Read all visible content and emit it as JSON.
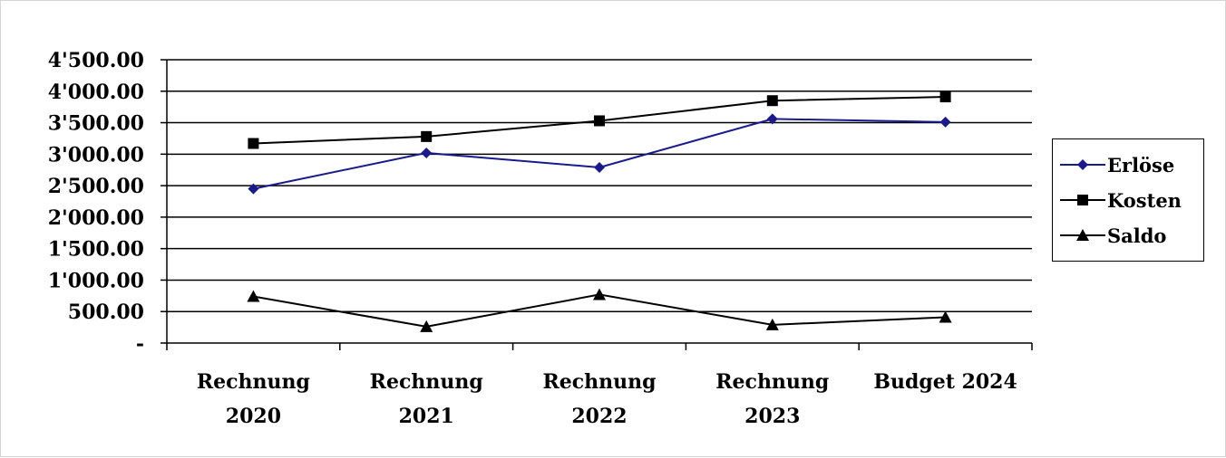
{
  "chart_data": {
    "type": "line",
    "categories": [
      [
        "Rechnung",
        "2020"
      ],
      [
        "Rechnung",
        "2021"
      ],
      [
        "Rechnung",
        "2022"
      ],
      [
        "Rechnung",
        "2023"
      ],
      [
        "Budget 2024"
      ]
    ],
    "ylim": [
      0,
      4500
    ],
    "yticks": [
      {
        "value": 0,
        "label": "-"
      },
      {
        "value": 500,
        "label": "500.00"
      },
      {
        "value": 1000,
        "label": "1'000.00"
      },
      {
        "value": 1500,
        "label": "1'500.00"
      },
      {
        "value": 2000,
        "label": "2'000.00"
      },
      {
        "value": 2500,
        "label": "2'500.00"
      },
      {
        "value": 3000,
        "label": "3'000.00"
      },
      {
        "value": 3500,
        "label": "3'500.00"
      },
      {
        "value": 4000,
        "label": "4'000.00"
      },
      {
        "value": 4500,
        "label": "4'500.00"
      }
    ],
    "grid": true,
    "legend_position": "right",
    "series": [
      {
        "name": "Erlöse",
        "color": "#1a1a8c",
        "marker": "diamond",
        "values": [
          2450,
          3020,
          2790,
          3560,
          3510
        ]
      },
      {
        "name": "Kosten",
        "color": "#000000",
        "marker": "square",
        "values": [
          3170,
          3280,
          3530,
          3850,
          3910
        ]
      },
      {
        "name": "Saldo",
        "color": "#000000",
        "marker": "triangle",
        "values": [
          740,
          260,
          770,
          290,
          410
        ]
      }
    ]
  }
}
